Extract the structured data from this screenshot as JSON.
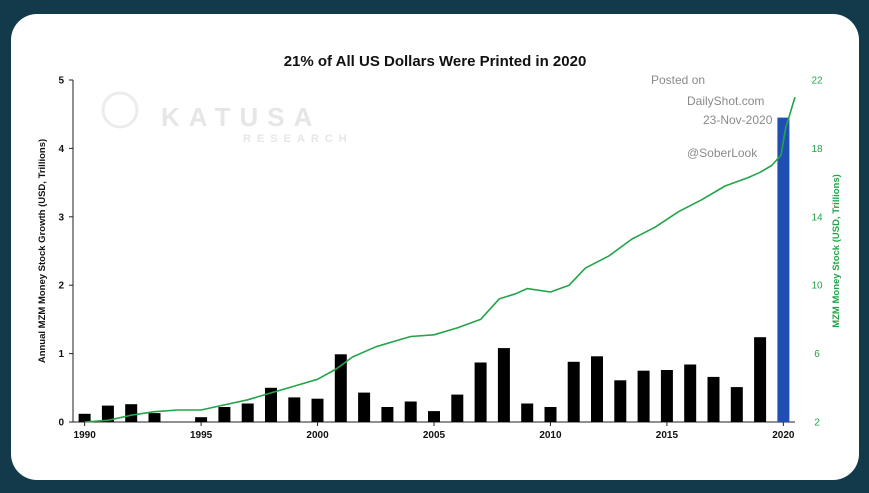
{
  "chart_data": {
    "type": "bar",
    "title": "21% of All US Dollars Were Printed in 2020",
    "ylabel": "Annual MZM Money Stock Growth (USD, Trillions)",
    "ylabel_right": "MZM Money Stock (USD,  Trillions)",
    "ylim": [
      0,
      5
    ],
    "ylim_right": [
      2,
      22
    ],
    "xlim": [
      1989.5,
      2020.5
    ],
    "y_ticks": [
      "0",
      "1",
      "2",
      "3",
      "4",
      "5"
    ],
    "y_ticks_right": [
      "2",
      "6",
      "10",
      "14",
      "18",
      "22"
    ],
    "x_ticks": [
      "1990",
      "1995",
      "2000",
      "2005",
      "2010",
      "2015",
      "2020"
    ],
    "grid": false,
    "series": [
      {
        "kind": "bar",
        "color": "#000000",
        "highlight": {
          "x": 2020,
          "color": "#1f4fb3"
        },
        "x": [
          1990,
          1991,
          1992,
          1993,
          1994,
          1995,
          1996,
          1997,
          1998,
          1999,
          2000,
          2001,
          2002,
          2003,
          2004,
          2005,
          2006,
          2007,
          2008,
          2009,
          2010,
          2011,
          2012,
          2013,
          2014,
          2015,
          2016,
          2017,
          2018,
          2019,
          2020
        ],
        "values": [
          0.12,
          0.24,
          0.26,
          0.13,
          0.0,
          0.07,
          0.22,
          0.27,
          0.5,
          0.36,
          0.34,
          0.99,
          0.43,
          0.22,
          0.3,
          0.16,
          0.4,
          0.87,
          1.08,
          0.27,
          0.22,
          0.88,
          0.96,
          0.61,
          0.75,
          0.76,
          0.84,
          0.66,
          0.51,
          1.24,
          4.45
        ]
      },
      {
        "kind": "line",
        "color": "#23a44a",
        "x": [
          1990.0,
          1991.0,
          1992.0,
          1993.0,
          1994.0,
          1995.0,
          1996.0,
          1997.0,
          1998.0,
          1999.0,
          2000.0,
          2000.8,
          2001.5,
          2002.5,
          2003.5,
          2004.0,
          2005.0,
          2006.0,
          2007.0,
          2007.8,
          2008.5,
          2009.0,
          2010.0,
          2010.8,
          2011.5,
          2012.5,
          2013.5,
          2014.5,
          2015.5,
          2016.5,
          2017.5,
          2018.5,
          2019.0,
          2019.5,
          2019.9,
          2020.1,
          2020.5
        ],
        "values": [
          2.0,
          2.1,
          2.4,
          2.6,
          2.7,
          2.7,
          3.0,
          3.3,
          3.7,
          4.1,
          4.5,
          5.1,
          5.8,
          6.4,
          6.8,
          7.0,
          7.1,
          7.5,
          8.0,
          9.2,
          9.5,
          9.8,
          9.6,
          10.0,
          11.0,
          11.7,
          12.7,
          13.4,
          14.3,
          15.0,
          15.8,
          16.3,
          16.6,
          17.0,
          17.6,
          19.2,
          21.0
        ]
      }
    ],
    "annotations": {
      "posted_on": "Posted on",
      "source": "DailyShot.com",
      "date": "23-Nov-2020",
      "handle": "@SoberLook"
    },
    "watermark": {
      "brand": "KATUSA",
      "sub": "RESEARCH"
    }
  }
}
